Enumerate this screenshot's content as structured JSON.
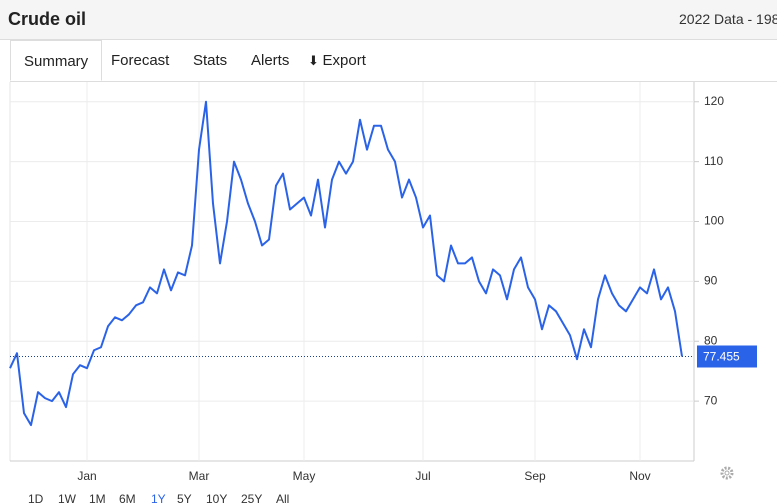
{
  "header": {
    "title": "Crude oil",
    "subtitle": "2022 Data - 198"
  },
  "tabs": [
    "Summary",
    "Forecast",
    "Stats",
    "Alerts",
    "Export"
  ],
  "active_tab": 0,
  "ranges": [
    "1D",
    "1W",
    "1M",
    "6M",
    "1Y",
    "5Y",
    "10Y",
    "25Y",
    "All"
  ],
  "active_range": 4,
  "chart_data": {
    "type": "line",
    "categories": [
      null,
      null,
      null,
      null,
      null,
      null,
      null,
      null,
      null,
      null,
      null,
      "Jan",
      null,
      null,
      null,
      null,
      null,
      null,
      null,
      null,
      null,
      null,
      null,
      null,
      null,
      null,
      null,
      "Mar",
      null,
      null,
      null,
      null,
      null,
      null,
      null,
      null,
      null,
      null,
      null,
      null,
      null,
      null,
      "May",
      null,
      null,
      null,
      null,
      null,
      null,
      null,
      null,
      null,
      null,
      null,
      null,
      null,
      null,
      null,
      null,
      "Jul",
      null,
      null,
      null,
      null,
      null,
      null,
      null,
      null,
      null,
      null,
      null,
      null,
      null,
      null,
      null,
      "Sep",
      null,
      null,
      null,
      null,
      null,
      null,
      null,
      null,
      null,
      null,
      null,
      null,
      null,
      null,
      "Nov",
      null,
      null,
      null,
      null,
      null,
      null
    ],
    "series": [
      {
        "name": "Crude oil",
        "color": "#2b63e8",
        "values": [
          75.5,
          78,
          68,
          66,
          71.5,
          70.5,
          70,
          71.5,
          69,
          74.5,
          76,
          75.5,
          78.5,
          79,
          82.5,
          84,
          83.5,
          84.5,
          86,
          86.5,
          89,
          88,
          92,
          88.5,
          91.5,
          91,
          96,
          112,
          120,
          103,
          93,
          100,
          110,
          107,
          103,
          100,
          96,
          97,
          106,
          108,
          102,
          103,
          104,
          101,
          107,
          99,
          107,
          110,
          108,
          110,
          117,
          112,
          116,
          116,
          112,
          110,
          104,
          107,
          104,
          99,
          101,
          91,
          90,
          96,
          93,
          93,
          94,
          90,
          88,
          92,
          91,
          87,
          92,
          94,
          89,
          87,
          82,
          86,
          85,
          83,
          81,
          77,
          82,
          79,
          87,
          91,
          88,
          86,
          85,
          87,
          89,
          88,
          92,
          87,
          89,
          85,
          77.455
        ]
      }
    ],
    "ylim": [
      60,
      123.3
    ],
    "yticks": [
      70,
      80,
      90,
      100,
      110,
      120
    ],
    "grid": true
  }
}
